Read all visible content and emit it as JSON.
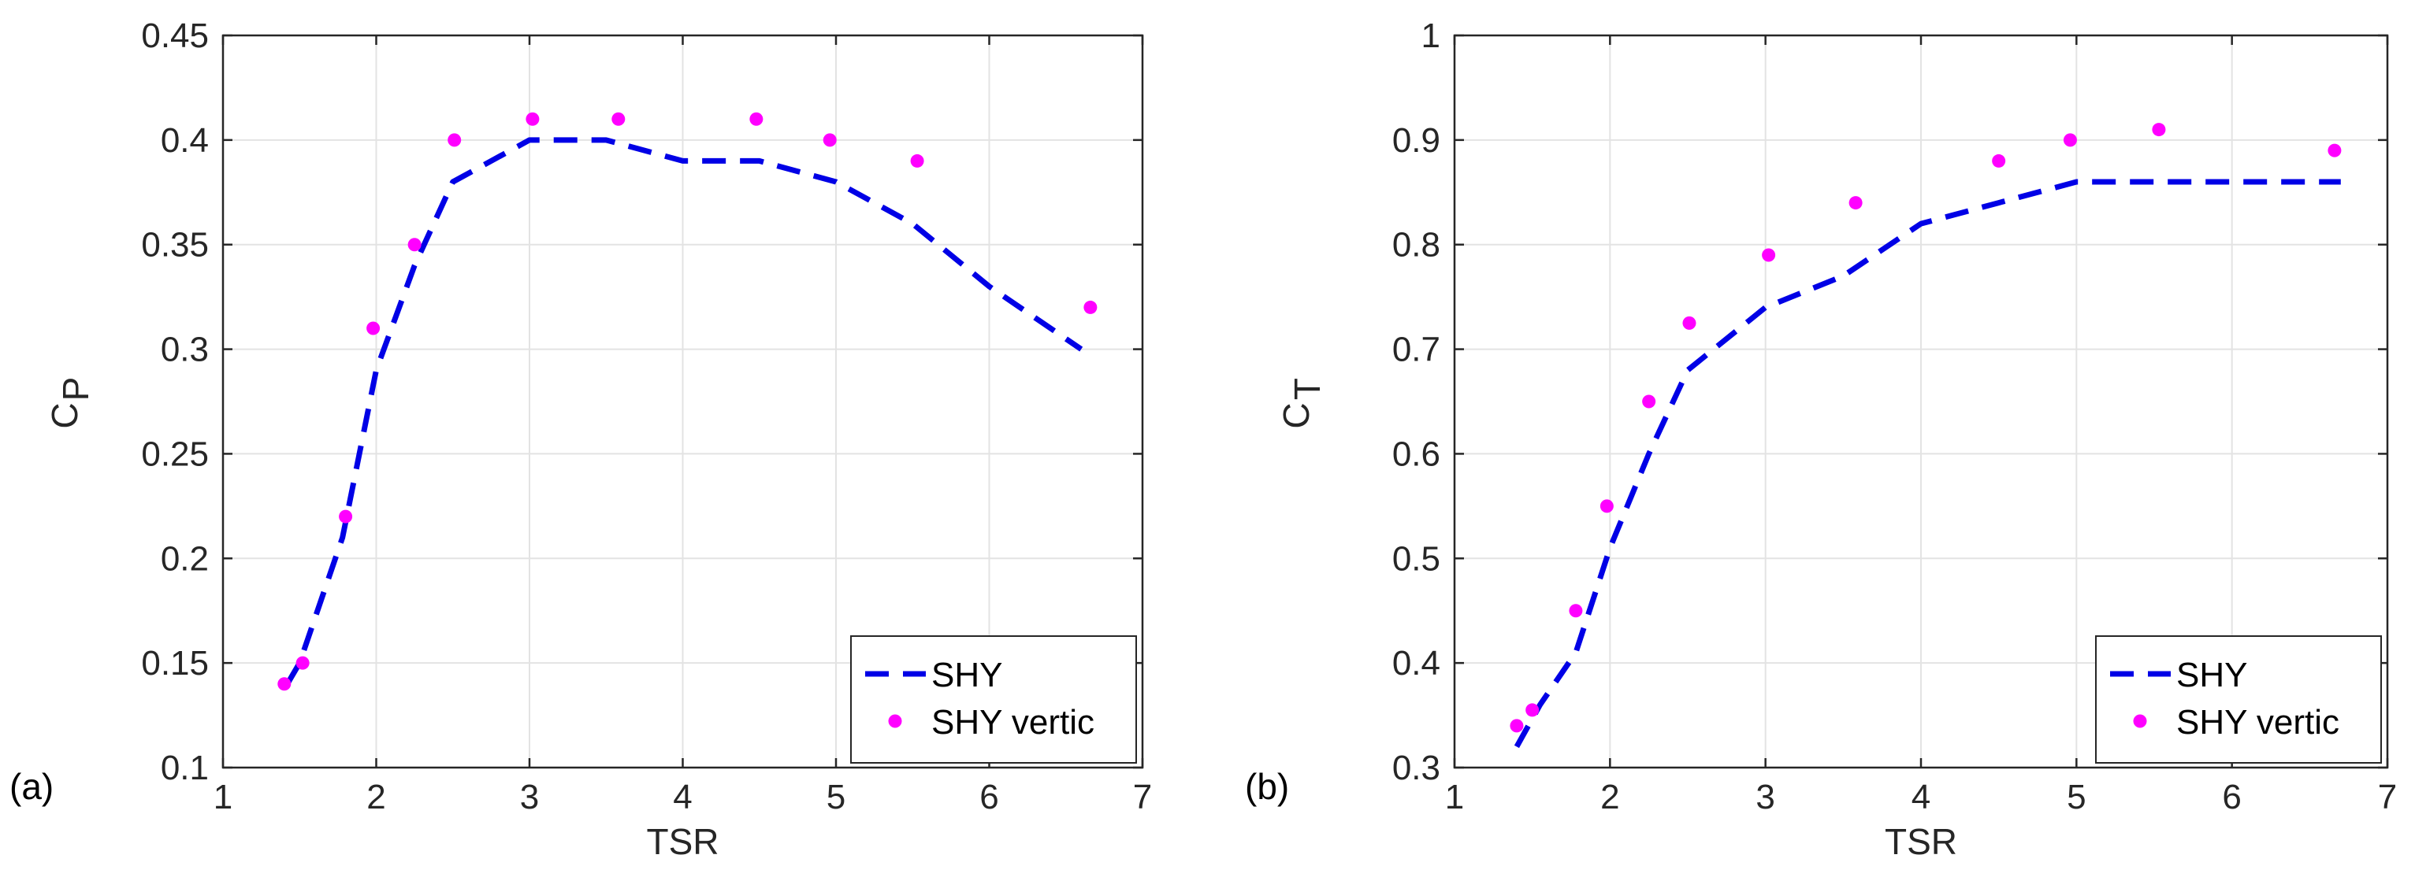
{
  "colors": {
    "model_line": "#0000e6",
    "measured_points": "#ff00ff",
    "axis": "#262626",
    "grid": "#e3e3e3"
  },
  "chart_data": [
    {
      "type": "line",
      "panel_label": "(a)",
      "xlabel": "TSR",
      "ylabel_main": "C",
      "ylabel_sub": "P",
      "xlim": [
        1,
        7
      ],
      "ylim": [
        0.1,
        0.45
      ],
      "xticks": [
        1,
        2,
        3,
        4,
        5,
        6,
        7
      ],
      "yticks": [
        0.1,
        0.15,
        0.2,
        0.25,
        0.3,
        0.35,
        0.4,
        0.45
      ],
      "xtick_labels": [
        "1",
        "2",
        "3",
        "4",
        "5",
        "6",
        "7"
      ],
      "ytick_labels": [
        "0.1",
        "0.15",
        "0.2",
        "0.25",
        "0.3",
        "0.35",
        "0.4",
        "0.45"
      ],
      "grid": true,
      "legend_position": "bottom-right",
      "series": [
        {
          "name": "SHY",
          "style": "dashed-line",
          "x": [
            1.42,
            1.5,
            1.78,
            2.0,
            2.25,
            2.5,
            3.0,
            3.5,
            4.0,
            4.5,
            5.0,
            5.5,
            6.0,
            6.6
          ],
          "y": [
            0.14,
            0.15,
            0.21,
            0.29,
            0.34,
            0.38,
            0.4,
            0.4,
            0.39,
            0.39,
            0.38,
            0.36,
            0.33,
            0.3
          ]
        },
        {
          "name": "SHY vertic",
          "style": "points",
          "x": [
            1.4,
            1.52,
            1.8,
            1.98,
            2.25,
            2.51,
            3.02,
            3.58,
            4.48,
            4.96,
            5.53,
            6.66
          ],
          "y": [
            0.14,
            0.15,
            0.22,
            0.31,
            0.35,
            0.4,
            0.41,
            0.41,
            0.41,
            0.4,
            0.39,
            0.32
          ]
        }
      ]
    },
    {
      "type": "line",
      "panel_label": "(b)",
      "xlabel": "TSR",
      "ylabel_main": "C",
      "ylabel_sub": "T",
      "xlim": [
        1,
        7
      ],
      "ylim": [
        0.3,
        1.0
      ],
      "xticks": [
        1,
        2,
        3,
        4,
        5,
        6,
        7
      ],
      "yticks": [
        0.3,
        0.4,
        0.5,
        0.6,
        0.7,
        0.8,
        0.9,
        1.0
      ],
      "xtick_labels": [
        "1",
        "2",
        "3",
        "4",
        "5",
        "6",
        "7"
      ],
      "ytick_labels": [
        "0.3",
        "0.4",
        "0.5",
        "0.6",
        "0.7",
        "0.8",
        "0.9",
        "1"
      ],
      "grid": true,
      "legend_position": "bottom-right",
      "series": [
        {
          "name": "SHY",
          "style": "dashed-line",
          "x": [
            1.4,
            1.55,
            1.78,
            2.0,
            2.25,
            2.5,
            3.0,
            3.5,
            4.0,
            4.5,
            5.0,
            5.5,
            6.0,
            6.7
          ],
          "y": [
            0.32,
            0.36,
            0.41,
            0.51,
            0.6,
            0.68,
            0.74,
            0.77,
            0.82,
            0.84,
            0.86,
            0.86,
            0.86,
            0.86
          ]
        },
        {
          "name": "SHY vertic",
          "style": "points",
          "x": [
            1.4,
            1.5,
            1.78,
            1.98,
            2.25,
            2.51,
            3.02,
            3.58,
            4.5,
            4.96,
            5.53,
            6.66
          ],
          "y": [
            0.34,
            0.355,
            0.45,
            0.55,
            0.65,
            0.725,
            0.79,
            0.84,
            0.88,
            0.9,
            0.91,
            0.89
          ]
        }
      ]
    }
  ]
}
